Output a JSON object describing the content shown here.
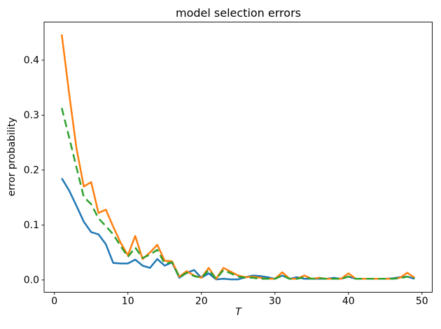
{
  "figure": {
    "background": "#ffffff",
    "text_color": "#000000"
  },
  "chart_data": {
    "type": "line",
    "title": "model selection errors",
    "xlabel": "T",
    "ylabel": "error probability",
    "grid": false,
    "legend": "none",
    "xlim": [
      -1.4,
      51.4
    ],
    "ylim": [
      -0.0224,
      0.4694
    ],
    "x_ticks": [
      0,
      10,
      20,
      30,
      40,
      50
    ],
    "x_tick_labels": [
      "0",
      "10",
      "20",
      "30",
      "40",
      "50"
    ],
    "y_ticks": [
      0.0,
      0.1,
      0.2,
      0.3,
      0.4
    ],
    "y_tick_labels": [
      "0.0",
      "0.1",
      "0.2",
      "0.3",
      "0.4"
    ],
    "x": [
      1,
      2,
      3,
      4,
      5,
      6,
      7,
      8,
      9,
      10,
      11,
      12,
      13,
      14,
      15,
      16,
      17,
      18,
      19,
      20,
      21,
      22,
      23,
      24,
      25,
      26,
      27,
      28,
      29,
      30,
      31,
      32,
      33,
      34,
      35,
      36,
      37,
      38,
      39,
      40,
      41,
      42,
      43,
      44,
      45,
      46,
      47,
      48,
      49
    ],
    "series": [
      {
        "name": "blue-solid",
        "color": "#1f77b4",
        "linestyle": "solid",
        "values": [
          0.185,
          0.163,
          0.135,
          0.106,
          0.087,
          0.083,
          0.065,
          0.031,
          0.03,
          0.03,
          0.037,
          0.026,
          0.022,
          0.038,
          0.026,
          0.032,
          0.004,
          0.013,
          0.018,
          0.004,
          0.012,
          0.001,
          0.002,
          0.001,
          0.001,
          0.005,
          0.008,
          0.007,
          0.005,
          0.002,
          0.008,
          0.002,
          0.005,
          0.002,
          0.002,
          0.002,
          0.002,
          0.004,
          0.002,
          0.006,
          0.002,
          0.002,
          0.002,
          0.002,
          0.002,
          0.003,
          0.005,
          0.006,
          0.002
        ]
      },
      {
        "name": "orange-solid",
        "color": "#ff7f0e",
        "linestyle": "solid",
        "values": [
          0.447,
          0.34,
          0.24,
          0.17,
          0.178,
          0.122,
          0.128,
          0.097,
          0.068,
          0.045,
          0.08,
          0.038,
          0.05,
          0.064,
          0.035,
          0.034,
          0.006,
          0.016,
          0.008,
          0.004,
          0.022,
          0.002,
          0.022,
          0.015,
          0.008,
          0.005,
          0.006,
          0.004,
          0.002,
          0.002,
          0.014,
          0.002,
          0.002,
          0.008,
          0.002,
          0.004,
          0.002,
          0.002,
          0.002,
          0.012,
          0.002,
          0.002,
          0.002,
          0.002,
          0.002,
          0.002,
          0.004,
          0.013,
          0.004
        ]
      },
      {
        "name": "green-dashed",
        "color": "#2ca02c",
        "linestyle": "dashed",
        "values": [
          0.313,
          0.26,
          0.205,
          0.151,
          0.138,
          0.112,
          0.098,
          0.083,
          0.062,
          0.042,
          0.059,
          0.04,
          0.046,
          0.055,
          0.03,
          0.032,
          0.005,
          0.013,
          0.007,
          0.004,
          0.018,
          0.002,
          0.018,
          0.012,
          0.006,
          0.004,
          0.004,
          0.002,
          0.002,
          0.002,
          0.008,
          0.002,
          0.002,
          0.005,
          0.002,
          0.003,
          0.002,
          0.002,
          0.002,
          0.006,
          0.002,
          0.002,
          0.002,
          0.002,
          0.002,
          0.002,
          0.003,
          0.006,
          0.003
        ]
      }
    ]
  }
}
